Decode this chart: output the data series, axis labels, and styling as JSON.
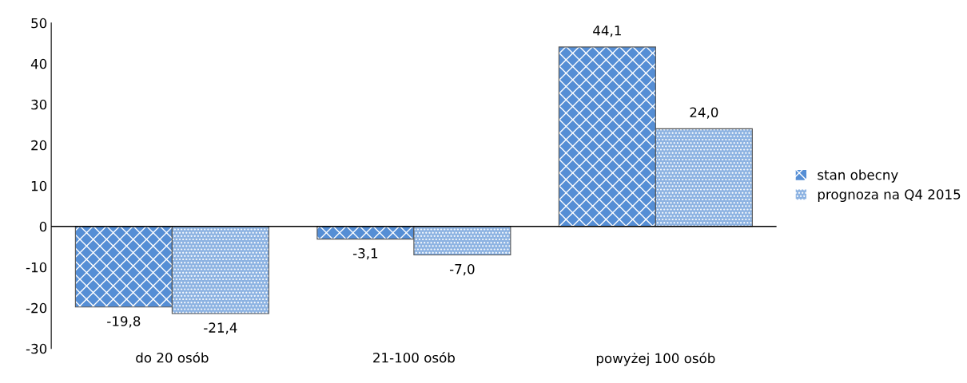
{
  "chart_data": {
    "type": "bar",
    "categories": [
      "do 20 osób",
      "21-100 osób",
      "powyżej 100 osób"
    ],
    "series": [
      {
        "name": "stan obecny",
        "color": "#558ed5",
        "values": [
          -19.8,
          -3.1,
          44.1
        ],
        "value_labels": [
          "-19,8",
          "-3,1",
          "44,1"
        ]
      },
      {
        "name": "prognoza na Q4 2015",
        "color": "#8db3e2",
        "values": [
          -21.4,
          -7.0,
          24.0
        ],
        "value_labels": [
          "-21,4",
          "-7,0",
          "24,0"
        ]
      }
    ],
    "ylim": [
      -30,
      50
    ],
    "yticks": [
      -30,
      -20,
      -10,
      0,
      10,
      20,
      30,
      40,
      50
    ],
    "legend": "right"
  }
}
